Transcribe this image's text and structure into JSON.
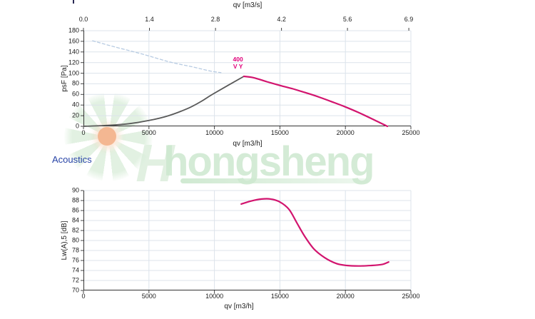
{
  "page": {
    "background": "#ffffff"
  },
  "watermark": {
    "text": "hongsheng",
    "letter": "H",
    "colors": {
      "green_text": "#cde8cf",
      "green_logo": "#d7ecd8",
      "orange": "#f2a678"
    }
  },
  "acoustics": {
    "heading": "Acoustics",
    "color": "#2743a6"
  },
  "chart_data": [
    {
      "id": "air",
      "type": "line",
      "title": "",
      "xlabel": "qv [m3/h]",
      "x2label": "qv [m3/s]",
      "ylabel": "psF [Pa]",
      "xlim": [
        0,
        25000
      ],
      "ylim": [
        0,
        180
      ],
      "xticks": [
        0,
        5000,
        10000,
        15000,
        20000,
        25000
      ],
      "yticks": [
        0,
        20,
        40,
        60,
        80,
        100,
        120,
        140,
        160,
        180
      ],
      "x2ticks": [
        {
          "pos": 0,
          "label": "0.0"
        },
        {
          "pos": 5040,
          "label": "1.4"
        },
        {
          "pos": 10080,
          "label": "2.8"
        },
        {
          "pos": 15120,
          "label": "4.2"
        },
        {
          "pos": 20160,
          "label": "5.6"
        },
        {
          "pos": 24840,
          "label": "6.9"
        }
      ],
      "grid": true,
      "series": [
        {
          "name": "max-pressure-curve-dashed",
          "color": "#b7cbe2",
          "dash": "4 3",
          "width": 1.3,
          "points": [
            [
              700,
              161
            ],
            [
              2300,
              150
            ],
            [
              4500,
              136
            ],
            [
              6600,
              121
            ],
            [
              8300,
              112
            ],
            [
              9700,
              104
            ],
            [
              10500,
              101
            ]
          ]
        },
        {
          "name": "system-resistance-curve",
          "color": "#595959",
          "dash": null,
          "width": 1.8,
          "points": [
            [
              0,
              0
            ],
            [
              2000,
              2
            ],
            [
              3500,
              5
            ],
            [
              5000,
              11
            ],
            [
              6500,
              20
            ],
            [
              8000,
              34
            ],
            [
              9000,
              47
            ],
            [
              9900,
              61
            ],
            [
              12250,
              94
            ]
          ]
        },
        {
          "name": "fan-curve-400V",
          "color": "#d2146e",
          "dash": null,
          "width": 2.2,
          "points": [
            [
              12250,
              94
            ],
            [
              13000,
              91.5
            ],
            [
              14000,
              84
            ],
            [
              15000,
              77
            ],
            [
              16000,
              70.5
            ],
            [
              17000,
              63
            ],
            [
              18000,
              55
            ],
            [
              19000,
              46
            ],
            [
              20000,
              36.5
            ],
            [
              21000,
              26
            ],
            [
              22000,
              14.5
            ],
            [
              23200,
              0
            ]
          ]
        }
      ],
      "annotation": {
        "lines": [
          "400",
          "V Y"
        ],
        "color": "#e0007a",
        "x": 11800,
        "y": 131
      }
    },
    {
      "id": "acoustics",
      "type": "line",
      "title": "Acoustics",
      "xlabel": "qv [m3/h]",
      "ylabel": "Lw(A),5 [dB]",
      "xlim": [
        0,
        25000
      ],
      "ylim": [
        70,
        90
      ],
      "xticks": [
        0,
        5000,
        10000,
        15000,
        20000,
        25000
      ],
      "yticks": [
        70,
        72,
        74,
        76,
        78,
        80,
        82,
        84,
        86,
        88,
        90
      ],
      "grid": true,
      "series": [
        {
          "name": "sound-power-level-curve",
          "color": "#d2146e",
          "dash": null,
          "width": 2.2,
          "points": [
            [
              12050,
              87.3
            ],
            [
              12800,
              87.9
            ],
            [
              13600,
              88.3
            ],
            [
              14300,
              88.3
            ],
            [
              15000,
              87.7
            ],
            [
              15700,
              86.2
            ],
            [
              16300,
              83.5
            ],
            [
              16900,
              80.8
            ],
            [
              17600,
              78.3
            ],
            [
              18400,
              76.6
            ],
            [
              19300,
              75.4
            ],
            [
              20100,
              75.0
            ],
            [
              21000,
              74.9
            ],
            [
              22000,
              75.0
            ],
            [
              22800,
              75.2
            ],
            [
              23300,
              75.7
            ]
          ]
        }
      ]
    }
  ]
}
